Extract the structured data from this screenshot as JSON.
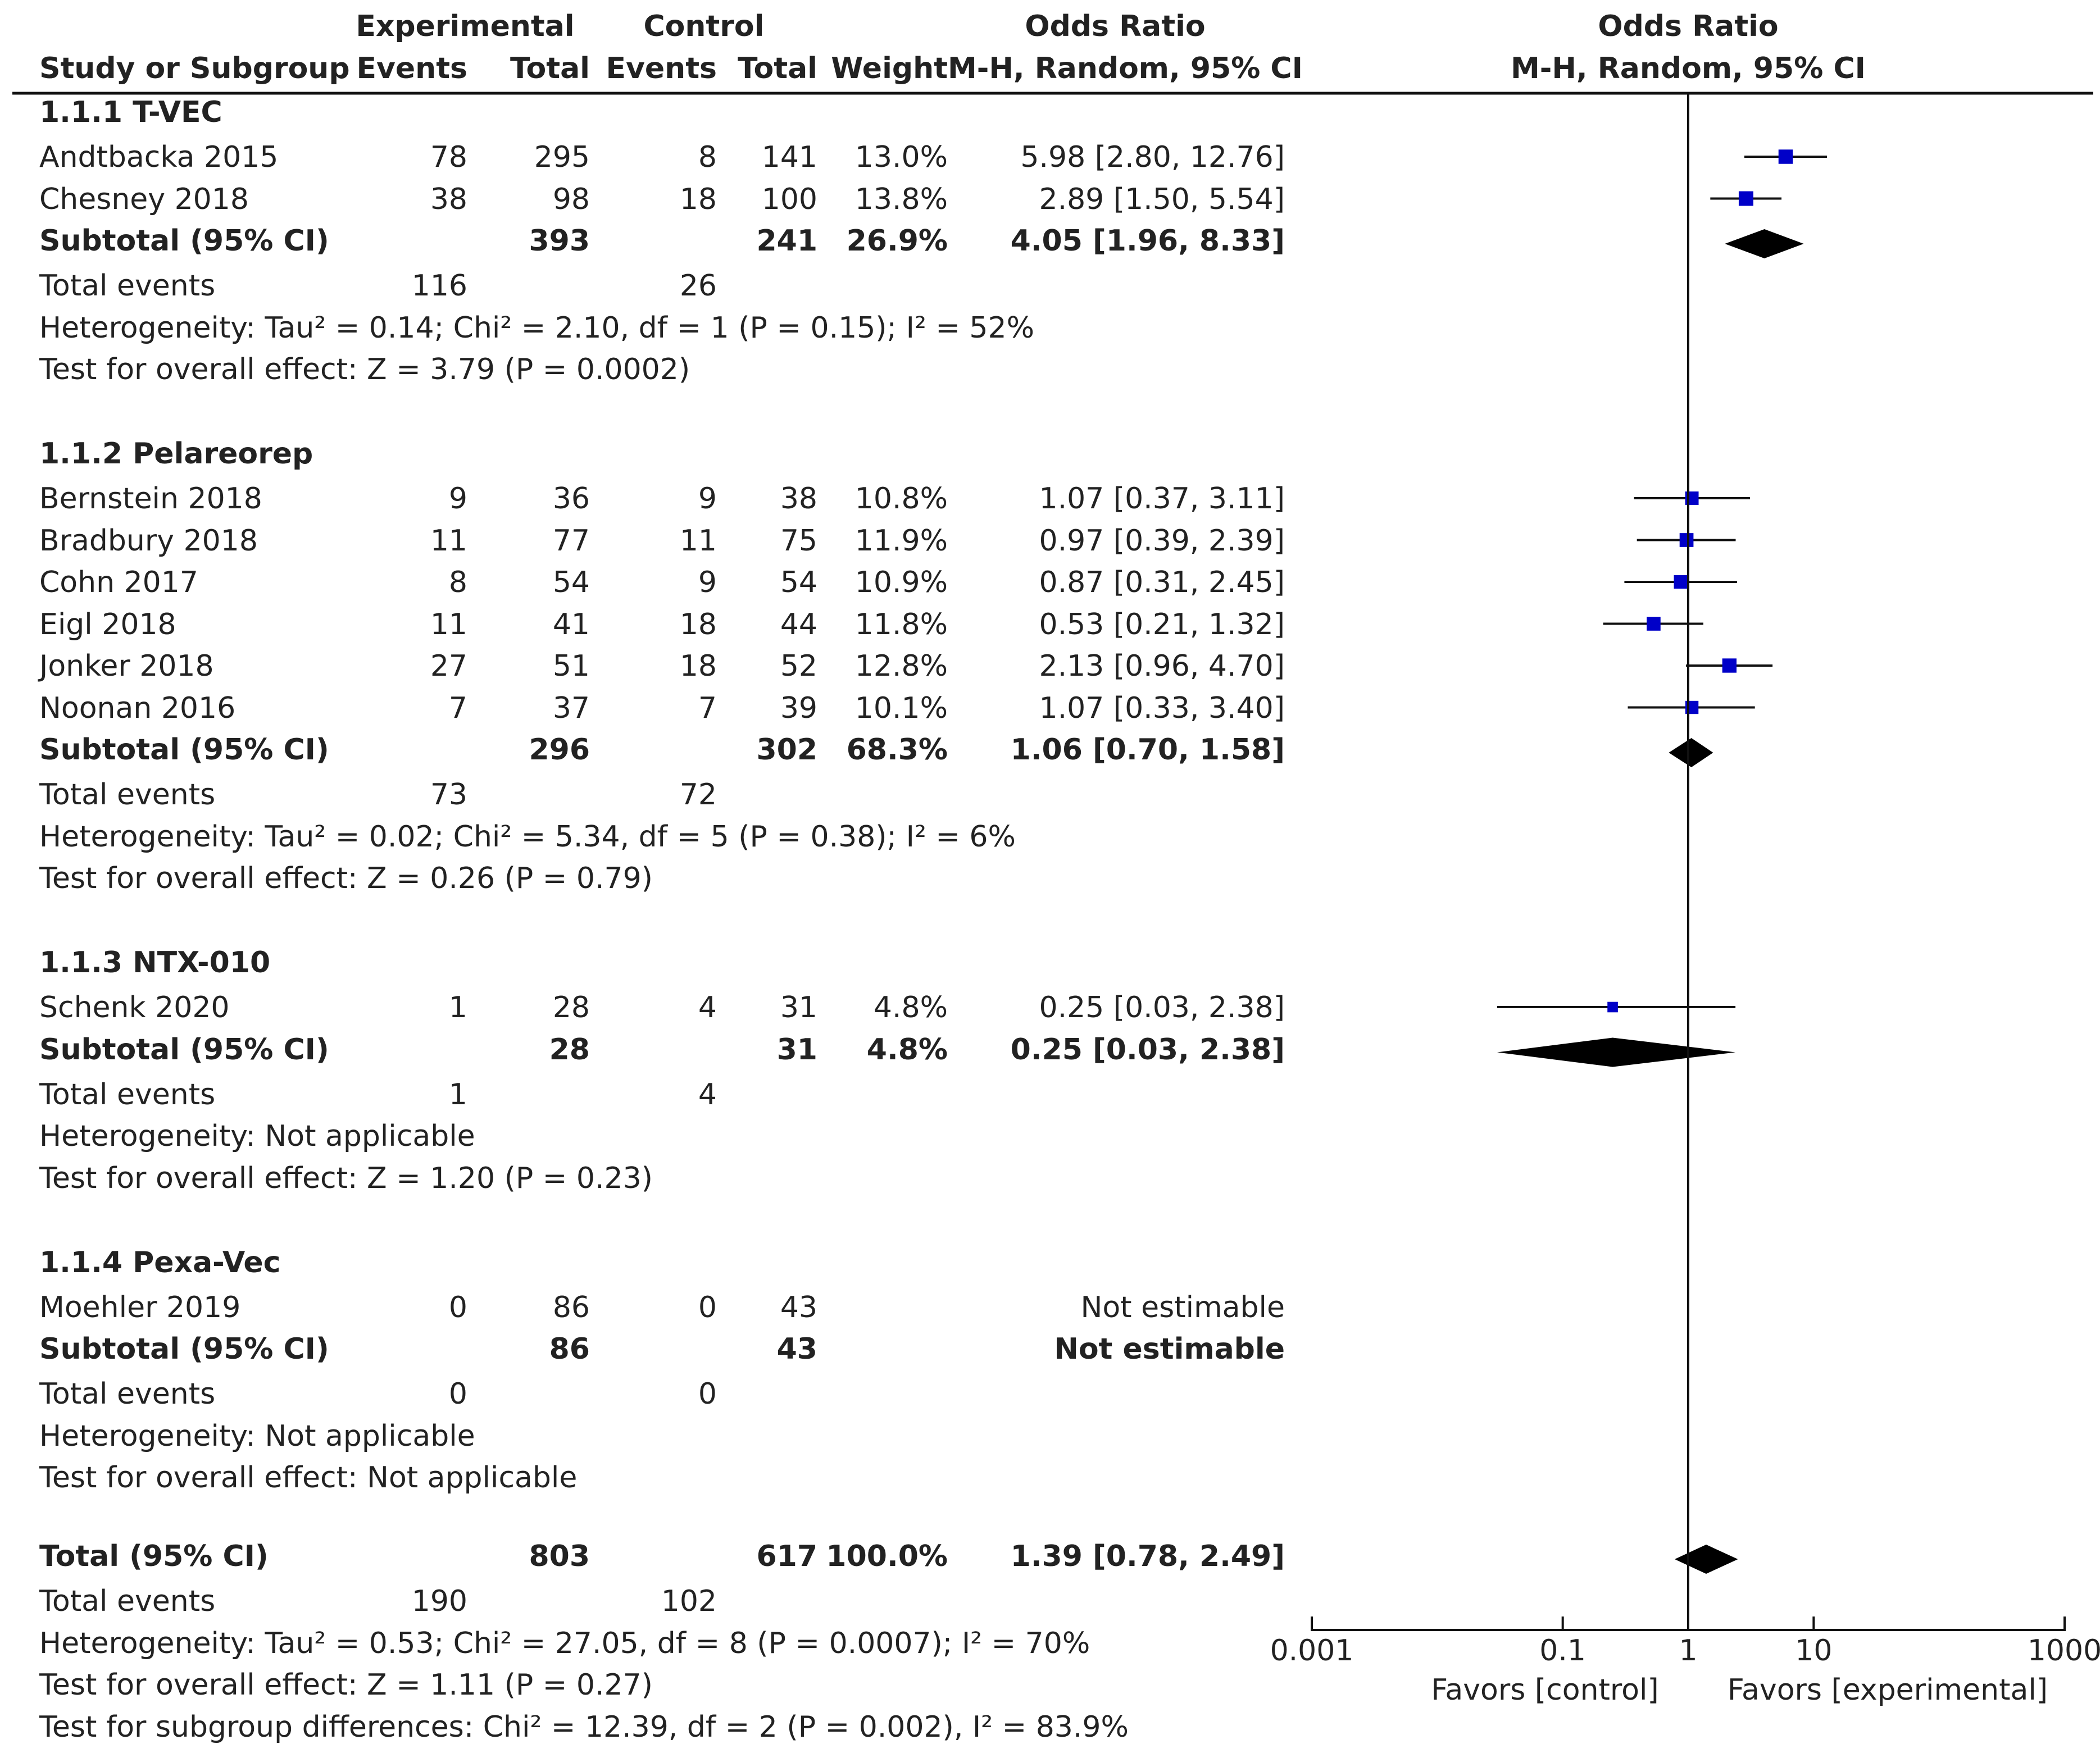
{
  "header": {
    "group_exp": "Experimental",
    "group_ctl": "Control",
    "or_title": "Odds Ratio",
    "plot_title": "Odds Ratio",
    "col_study": "Study or Subgroup",
    "col_exp_events": "Events",
    "col_exp_total": "Total",
    "col_ctl_events": "Events",
    "col_ctl_total": "Total",
    "col_weight": "Weight",
    "col_ci": "M-H, Random, 95% CI",
    "plot_ci": "M-H, Random, 95% CI"
  },
  "groups": [
    {
      "title": "1.1.1 T-VEC",
      "studies": [
        {
          "name": "Andtbacka 2015",
          "ee": "78",
          "et": "295",
          "ce": "8",
          "ct": "141",
          "w": "13.0%",
          "ci": "5.98 [2.80, 12.76]"
        },
        {
          "name": "Chesney 2018",
          "ee": "38",
          "et": "98",
          "ce": "18",
          "ct": "100",
          "w": "13.8%",
          "ci": "2.89 [1.50, 5.54]"
        }
      ],
      "subtotal": {
        "label": "Subtotal (95% CI)",
        "et": "393",
        "ct": "241",
        "w": "26.9%",
        "ci": "4.05 [1.96, 8.33]"
      },
      "events": {
        "label": "Total events",
        "e": "116",
        "c": "26"
      },
      "heterogeneity": "Heterogeneity: Tau² = 0.14; Chi² = 2.10, df = 1 (P = 0.15); I² = 52%",
      "overall": "Test for overall effect: Z = 3.79 (P = 0.0002)"
    },
    {
      "title": "1.1.2 Pelareorep",
      "studies": [
        {
          "name": "Bernstein 2018",
          "ee": "9",
          "et": "36",
          "ce": "9",
          "ct": "38",
          "w": "10.8%",
          "ci": "1.07 [0.37, 3.11]"
        },
        {
          "name": "Bradbury 2018",
          "ee": "11",
          "et": "77",
          "ce": "11",
          "ct": "75",
          "w": "11.9%",
          "ci": "0.97 [0.39, 2.39]"
        },
        {
          "name": "Cohn 2017",
          "ee": "8",
          "et": "54",
          "ce": "9",
          "ct": "54",
          "w": "10.9%",
          "ci": "0.87 [0.31, 2.45]"
        },
        {
          "name": "Eigl 2018",
          "ee": "11",
          "et": "41",
          "ce": "18",
          "ct": "44",
          "w": "11.8%",
          "ci": "0.53 [0.21, 1.32]"
        },
        {
          "name": "Jonker 2018",
          "ee": "27",
          "et": "51",
          "ce": "18",
          "ct": "52",
          "w": "12.8%",
          "ci": "2.13 [0.96, 4.70]"
        },
        {
          "name": "Noonan 2016",
          "ee": "7",
          "et": "37",
          "ce": "7",
          "ct": "39",
          "w": "10.1%",
          "ci": "1.07 [0.33, 3.40]"
        }
      ],
      "subtotal": {
        "label": "Subtotal (95% CI)",
        "et": "296",
        "ct": "302",
        "w": "68.3%",
        "ci": "1.06 [0.70, 1.58]"
      },
      "events": {
        "label": "Total events",
        "e": "73",
        "c": "72"
      },
      "heterogeneity": "Heterogeneity: Tau² = 0.02; Chi² = 5.34, df = 5 (P = 0.38); I² = 6%",
      "overall": "Test for overall effect: Z = 0.26 (P = 0.79)"
    },
    {
      "title": "1.1.3 NTX-010",
      "studies": [
        {
          "name": "Schenk 2020",
          "ee": "1",
          "et": "28",
          "ce": "4",
          "ct": "31",
          "w": "4.8%",
          "ci": "0.25 [0.03, 2.38]"
        }
      ],
      "subtotal": {
        "label": "Subtotal (95% CI)",
        "et": "28",
        "ct": "31",
        "w": "4.8%",
        "ci": "0.25 [0.03, 2.38]"
      },
      "events": {
        "label": "Total events",
        "e": "1",
        "c": "4"
      },
      "heterogeneity": "Heterogeneity: Not applicable",
      "overall": "Test for overall effect: Z = 1.20 (P = 0.23)"
    },
    {
      "title": "1.1.4 Pexa-Vec",
      "studies": [
        {
          "name": "Moehler 2019",
          "ee": "0",
          "et": "86",
          "ce": "0",
          "ct": "43",
          "w": "",
          "ci": "Not estimable"
        }
      ],
      "subtotal": {
        "label": "Subtotal (95% CI)",
        "et": "86",
        "ct": "43",
        "w": "",
        "ci": "Not estimable"
      },
      "events": {
        "label": "Total events",
        "e": "0",
        "c": "0"
      },
      "heterogeneity": "Heterogeneity: Not applicable",
      "overall": "Test for overall effect: Not applicable"
    }
  ],
  "total": {
    "label": "Total (95% CI)",
    "et": "803",
    "ct": "617",
    "w": "100.0%",
    "ci": "1.39 [0.78, 2.49]",
    "events_label": "Total events",
    "e": "190",
    "c": "102",
    "heterogeneity": "Heterogeneity: Tau² = 0.53; Chi² = 27.05, df = 8 (P = 0.0007); I² = 70%",
    "overall": "Test for overall effect: Z = 1.11 (P = 0.27)",
    "subgroup": "Test for subgroup differences: Chi² = 12.39, df = 2 (P = 0.002), I² = 83.9%"
  },
  "chart_data": {
    "type": "scatter",
    "subtype": "forest-plot",
    "title": "Odds Ratio",
    "subtitle": "M-H, Random, 95% CI",
    "x_scale": "log",
    "xlim": [
      0.001,
      1000
    ],
    "x_ticks": [
      0.001,
      0.1,
      1,
      10,
      1000
    ],
    "x_tick_labels": [
      "0.001",
      "0.1",
      "1",
      "10",
      "1000"
    ],
    "left_label": "Favors [control]",
    "right_label": "Favors [experimental]",
    "reference_line": 1,
    "studies": [
      {
        "name": "Andtbacka 2015",
        "or": 5.98,
        "lo": 2.8,
        "hi": 12.76,
        "weight": 13.0
      },
      {
        "name": "Chesney 2018",
        "or": 2.89,
        "lo": 1.5,
        "hi": 5.54,
        "weight": 13.8
      },
      {
        "name": "Bernstein 2018",
        "or": 1.07,
        "lo": 0.37,
        "hi": 3.11,
        "weight": 10.8
      },
      {
        "name": "Bradbury 2018",
        "or": 0.97,
        "lo": 0.39,
        "hi": 2.39,
        "weight": 11.9
      },
      {
        "name": "Cohn 2017",
        "or": 0.87,
        "lo": 0.31,
        "hi": 2.45,
        "weight": 10.9
      },
      {
        "name": "Eigl 2018",
        "or": 0.53,
        "lo": 0.21,
        "hi": 1.32,
        "weight": 11.8
      },
      {
        "name": "Jonker 2018",
        "or": 2.13,
        "lo": 0.96,
        "hi": 4.7,
        "weight": 12.8
      },
      {
        "name": "Noonan 2016",
        "or": 1.07,
        "lo": 0.33,
        "hi": 3.4,
        "weight": 10.1
      },
      {
        "name": "Schenk 2020",
        "or": 0.25,
        "lo": 0.03,
        "hi": 2.38,
        "weight": 4.8
      }
    ],
    "summaries": [
      {
        "name": "Subtotal 1.1.1 T-VEC",
        "or": 4.05,
        "lo": 1.96,
        "hi": 8.33
      },
      {
        "name": "Subtotal 1.1.2 Pelareorep",
        "or": 1.06,
        "lo": 0.7,
        "hi": 1.58
      },
      {
        "name": "Subtotal 1.1.3 NTX-010",
        "or": 0.25,
        "lo": 0.03,
        "hi": 2.38
      },
      {
        "name": "Total",
        "or": 1.39,
        "lo": 0.78,
        "hi": 2.49
      }
    ]
  }
}
